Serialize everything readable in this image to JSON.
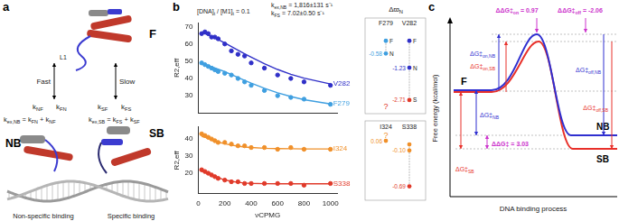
{
  "panel_labels": [
    "a",
    "b",
    "c"
  ],
  "diagram_a": {
    "top_state": "F",
    "loop": "L1",
    "fast": "Fast",
    "slow": "Slow",
    "rates": [
      [
        [
          "k",
          "NF"
        ]
      ],
      [
        [
          "k",
          "FN"
        ]
      ],
      [
        [
          "k",
          "SF"
        ]
      ],
      [
        [
          "k",
          "FS"
        ]
      ]
    ],
    "equations": [
      [
        [
          "k",
          "ex,NB"
        ],
        [
          " = k",
          "FN"
        ],
        [
          " + k",
          "NF"
        ]
      ],
      [
        [
          "k",
          "ex,SB"
        ],
        [
          " = k",
          "FS"
        ],
        [
          " + k",
          "SF"
        ]
      ]
    ],
    "bottom_states": [
      "NB",
      "SB"
    ],
    "captions": [
      "Non-specific binding",
      "Specific binding"
    ]
  },
  "header_b": [
    [
      [
        "[DNA]",
        "t"
      ],
      [
        " / [M1]",
        "t"
      ],
      [
        " = 0.1"
      ]
    ],
    [
      [
        "k",
        "ex,NB"
      ],
      [
        " = 1,816±131 s⁻¹"
      ]
    ],
    [
      [
        "k",
        "FS"
      ],
      [
        " = 7.02±0.50 s⁻¹"
      ]
    ]
  ],
  "chart_data": [
    {
      "type": "scatter",
      "x": [
        25,
        50,
        75,
        100,
        125,
        150,
        200,
        250,
        300,
        350,
        400,
        500,
        600,
        700,
        800,
        1000
      ],
      "xlim": [
        0,
        1050
      ],
      "xticks": [
        0,
        200,
        400,
        600,
        800,
        1000
      ],
      "ylim": [
        20,
        72
      ],
      "yticks": [
        30,
        40,
        50,
        60,
        70
      ],
      "y_label": "R2,eff",
      "grid": false,
      "tick_labels": "y",
      "series": [
        {
          "name": "V282",
          "color": "#3030c8",
          "marker": "circle",
          "values": [
            66,
            67,
            66,
            64,
            64,
            63,
            60,
            56,
            54,
            53,
            49,
            46,
            42,
            40,
            38,
            36
          ],
          "fit": [
            66.5,
            65.9,
            65.2,
            64.4,
            63.5,
            62.6,
            60.6,
            58.5,
            56.4,
            54.3,
            52.3,
            48.5,
            45.2,
            42.4,
            40.2,
            36.8
          ]
        },
        {
          "name": "F279",
          "color": "#3f9fe0",
          "marker": "circle",
          "values": [
            49,
            48,
            47,
            46,
            45,
            44,
            43,
            42,
            40,
            38,
            36,
            33,
            30,
            29,
            28,
            25
          ],
          "fit": [
            48.5,
            48,
            47.4,
            46.8,
            46.1,
            45.4,
            43.9,
            42.3,
            40.6,
            38.9,
            37.3,
            34.3,
            31.7,
            29.5,
            27.7,
            25.2
          ]
        }
      ]
    },
    {
      "type": "scatter",
      "x": [
        25,
        50,
        75,
        100,
        125,
        150,
        200,
        250,
        300,
        350,
        400,
        500,
        600,
        700,
        800,
        1000
      ],
      "xlim": [
        0,
        1050
      ],
      "xticks": [
        0,
        200,
        400,
        600,
        800,
        1000
      ],
      "ylim": [
        8,
        47
      ],
      "yticks": [
        20,
        30,
        40
      ],
      "x_label": "νCPMG",
      "y_label": "R2,eff",
      "grid": false,
      "series": [
        {
          "name": "I324",
          "color": "#f0902a",
          "marker": "circle",
          "values": [
            43,
            42,
            41,
            40,
            39,
            38,
            38,
            37,
            36,
            36,
            35,
            35,
            34,
            35,
            34,
            34
          ],
          "fit": [
            41.5,
            41,
            40.2,
            39.5,
            38.8,
            38.2,
            37.2,
            36.4,
            35.8,
            35.3,
            35,
            34.6,
            34.4,
            34.3,
            34.2,
            34.2
          ]
        },
        {
          "name": "S338",
          "color": "#e03a2a",
          "marker": "circle",
          "values": [
            22,
            21,
            20,
            19,
            18,
            17,
            16,
            15,
            15,
            14,
            14,
            14,
            14,
            14,
            13,
            14
          ],
          "fit": [
            21.3,
            20.5,
            19.6,
            18.8,
            18,
            17.3,
            16.1,
            15.3,
            14.7,
            14.3,
            14.1,
            13.9,
            13.8,
            13.8,
            13.8,
            13.8
          ]
        }
      ]
    }
  ],
  "side_panels": {
    "title": [
      [
        "Δϖ",
        "N"
      ]
    ],
    "panels": [
      {
        "ylim": [
          -3,
          0.3
        ],
        "state_letters": true,
        "columns": [
          {
            "name": "F279",
            "points": [
              {
                "state": "F",
                "value": 0,
                "color": "#3f9fe0"
              },
              {
                "state": "N",
                "value": -0.58,
                "color": "#3f9fe0",
                "label": "-0.58"
              },
              {
                "state": "S",
                "value": null,
                "color": "#e03a2a",
                "label": "?"
              }
            ]
          },
          {
            "name": "V282",
            "points": [
              {
                "state": "F",
                "value": 0,
                "color": "#3030c8"
              },
              {
                "state": "N",
                "value": -1.23,
                "color": "#3030c8",
                "label": "-1.23"
              },
              {
                "state": "S",
                "value": -2.71,
                "color": "#e03a2a",
                "label": "-2.71"
              }
            ]
          }
        ]
      },
      {
        "ylim": [
          -0.8,
          0.15
        ],
        "state_letters": false,
        "columns": [
          {
            "name": "I324",
            "points": [
              {
                "state": "F",
                "value": null,
                "color": "#f0902a",
                "label": "?"
              },
              {
                "value": 0.06,
                "color": "#f0902a",
                "label": "0.06"
              }
            ]
          },
          {
            "name": "S338",
            "points": [
              {
                "value": 0,
                "color": "#f0902a"
              },
              {
                "value": -0.1,
                "color": "#f0902a",
                "label": "-0.10"
              },
              {
                "value": -0.69,
                "color": "#e03a2a",
                "label": "-0.69"
              }
            ]
          }
        ]
      }
    ]
  },
  "diagram_c": {
    "y_label": "Free energy (kcal/mol)",
    "x_label": "DNA binding process",
    "states": [
      "F",
      "NB",
      "SB"
    ],
    "colors": {
      "NB": "#2f2fd0",
      "SB": "#e8302a",
      "difference": "#cc33cc"
    },
    "barriers": [
      [
        [
          "ΔG‡",
          "NB"
        ]
      ],
      [
        [
          "ΔG‡",
          "on,NB"
        ]
      ],
      [
        [
          "ΔG‡",
          "off,NB"
        ]
      ],
      [
        [
          "ΔG‡",
          "SB"
        ]
      ],
      [
        [
          "ΔG‡",
          "on,SB"
        ]
      ],
      [
        [
          "ΔG‡",
          "off,SB"
        ]
      ]
    ],
    "differences": [
      {
        "parts": [
          [
            "ΔΔG‡",
            "on"
          ],
          [
            " = "
          ]
        ],
        "value": 0.97
      },
      {
        "parts": [
          [
            "ΔΔG‡",
            "off"
          ],
          [
            " = "
          ]
        ],
        "value": -2.06
      },
      {
        "parts": [
          [
            "ΔΔG‡"
          ],
          [
            " = "
          ]
        ],
        "value": 3.03
      }
    ]
  }
}
